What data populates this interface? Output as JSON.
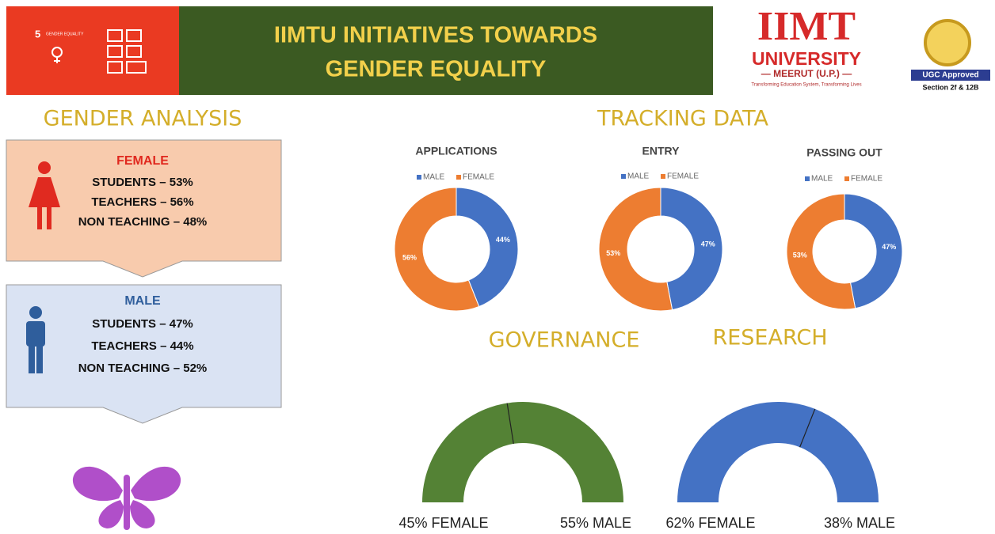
{
  "header": {
    "title_line1": "IIMTU INITIATIVES TOWARDS",
    "title_line2": "GENDER EQUALITY",
    "sdg": {
      "number": "5",
      "label": "GENDER EQUALITY"
    },
    "logo": {
      "name": "IIMT",
      "sub": "UNIVERSITY",
      "place": "— MEERUT (U.P.) —",
      "tagline": "Transforming Education System, Transforming Lives"
    },
    "badge": {
      "line1": "UGC Approved",
      "line2": "Section 2f & 12B"
    }
  },
  "gender_analysis": {
    "title": "GENDER ANALYSIS",
    "female": {
      "heading": "FEMALE",
      "lines": [
        "STUDENTS – 53%",
        "TEACHERS – 56%",
        "NON TEACHING – 48%"
      ]
    },
    "male": {
      "heading": "MALE",
      "lines": [
        "STUDENTS – 47%",
        "TEACHERS – 44%",
        "NON TEACHING – 52%"
      ]
    }
  },
  "tracking_title": "TRACKING DATA",
  "chart_data": [
    {
      "type": "donut",
      "title": "APPLICATIONS",
      "categories": [
        "MALE",
        "FEMALE"
      ],
      "values": [
        44,
        56
      ],
      "value_labels": [
        "44%",
        "56%"
      ],
      "colors": [
        "#4472c4",
        "#ed7d31"
      ]
    },
    {
      "type": "donut",
      "title": "ENTRY",
      "categories": [
        "MALE",
        "FEMALE"
      ],
      "values": [
        47,
        53
      ],
      "value_labels": [
        "47%",
        "53%"
      ],
      "colors": [
        "#4472c4",
        "#ed7d31"
      ]
    },
    {
      "type": "donut",
      "title": "PASSING OUT",
      "categories": [
        "MALE",
        "FEMALE"
      ],
      "values": [
        47,
        53
      ],
      "value_labels": [
        "47%",
        "53%"
      ],
      "colors": [
        "#4472c4",
        "#ed7d31"
      ]
    },
    {
      "type": "gauge",
      "title": "GOVERNANCE",
      "values": [
        45,
        55
      ],
      "value_labels": [
        "45% FEMALE",
        "55% MALE"
      ],
      "color": "#548235"
    },
    {
      "type": "gauge",
      "title": "RESEARCH",
      "values": [
        62,
        38
      ],
      "value_labels": [
        "62% FEMALE",
        "38% MALE"
      ],
      "color": "#4472c4"
    }
  ]
}
